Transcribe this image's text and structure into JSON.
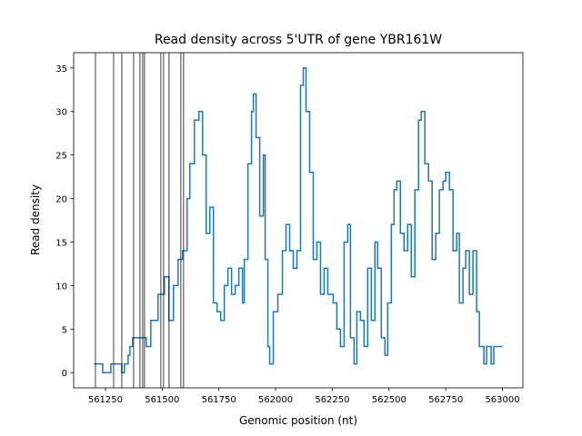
{
  "chart_data": {
    "type": "step",
    "title": "Read density across 5'UTR of gene YBR161W",
    "x_label": "Genomic position (nt)",
    "y_label": "Read density",
    "xlim": [
      561110,
      563090
    ],
    "ylim": [
      -1.75,
      36.75
    ],
    "xticks": [
      561250,
      561500,
      561750,
      562000,
      562250,
      562500,
      562750,
      563000
    ],
    "yticks": [
      0,
      5,
      10,
      15,
      20,
      25,
      30,
      35
    ],
    "grid": false,
    "vlines": [
      561206,
      561286,
      561322,
      561374,
      561402,
      561414,
      561422,
      561494,
      561506,
      561530,
      561582,
      561594
    ],
    "vline_color": "#000000",
    "series": [
      {
        "name": "Read density",
        "color": "#1f77b4",
        "x": [
          561200,
          561238,
          561274,
          561322,
          561334,
          561350,
          561358,
          561370,
          561430,
          561450,
          561482,
          561510,
          561530,
          561550,
          561570,
          561590,
          561610,
          561622,
          561642,
          561662,
          561678,
          561694,
          561710,
          561726,
          561742,
          561758,
          561774,
          561790,
          561806,
          561822,
          561838,
          561854,
          561862,
          561878,
          561894,
          561902,
          561914,
          561930,
          561946,
          561954,
          561966,
          561974,
          561990,
          562010,
          562030,
          562046,
          562062,
          562078,
          562094,
          562110,
          562122,
          562134,
          562150,
          562166,
          562182,
          562198,
          562214,
          562230,
          562254,
          562270,
          562286,
          562302,
          562318,
          562330,
          562346,
          562358,
          562374,
          562390,
          562406,
          562422,
          562438,
          562450,
          562466,
          562482,
          562494,
          562510,
          562522,
          562534,
          562550,
          562566,
          562582,
          562598,
          562614,
          562630,
          562642,
          562658,
          562674,
          562690,
          562706,
          562722,
          562738,
          562750,
          562766,
          562782,
          562798,
          562810,
          562826,
          562838,
          562854,
          562870,
          562886,
          562898,
          562918,
          562930,
          562950,
          562962,
          563000
        ],
        "values": [
          1,
          0,
          1,
          0,
          1,
          2,
          3,
          4,
          3,
          6,
          9,
          11,
          6,
          10,
          13,
          14,
          20,
          24,
          29,
          30,
          25,
          16,
          19,
          8,
          7,
          6,
          10,
          12,
          9,
          10,
          12,
          8,
          13,
          24,
          30,
          32,
          27,
          18,
          25,
          13,
          3,
          1,
          7,
          9,
          14,
          17,
          14,
          12,
          14,
          33,
          35,
          30,
          23,
          13,
          15,
          9,
          12,
          9,
          8,
          5,
          3,
          15,
          17,
          4,
          1,
          7,
          6,
          3,
          12,
          6,
          15,
          12,
          4,
          2,
          8,
          17,
          21,
          22,
          16,
          14,
          17,
          11,
          21,
          29,
          30,
          24,
          22,
          13,
          16,
          21,
          22,
          23,
          21,
          14,
          16,
          8,
          12,
          14,
          9,
          14,
          7,
          3,
          1,
          3,
          1,
          3,
          3
        ]
      }
    ]
  }
}
